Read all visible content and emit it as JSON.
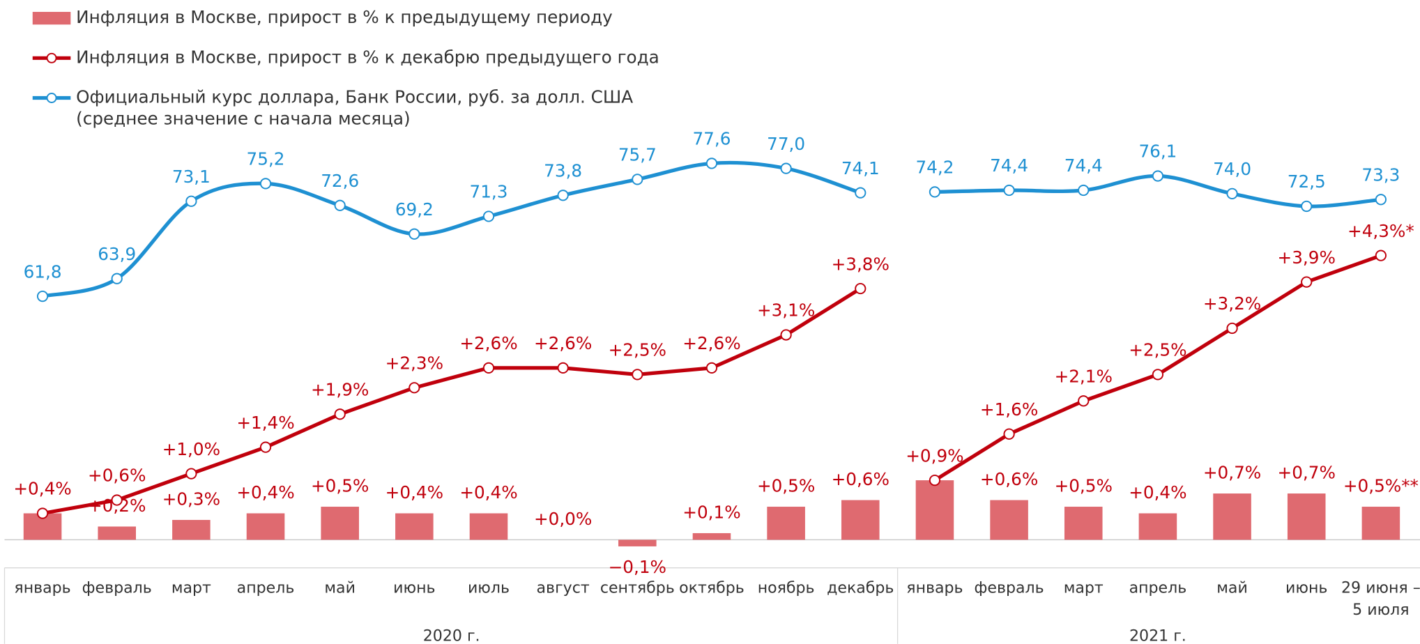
{
  "chart_data": {
    "type": "bar-line",
    "categories": [
      "январь",
      "февраль",
      "март",
      "апрель",
      "май",
      "июнь",
      "июль",
      "август",
      "сентябрь",
      "октябрь",
      "ноябрь",
      "декабрь",
      "январь",
      "февраль",
      "март",
      "апрель",
      "май",
      "июнь",
      "29 июня –\n5 июля"
    ],
    "groups": [
      {
        "label": "2020 г.",
        "categories": 12
      },
      {
        "label": "2021 г.",
        "categories": 7
      }
    ],
    "ylim": [
      -1,
      6
    ],
    "y2lim": [
      25,
      80
    ],
    "series": [
      {
        "name": "Инфляция в Москве, прирост в % к предыдущему периоду",
        "type": "bar",
        "color": "#df6a70",
        "values": [
          0.4,
          0.2,
          0.3,
          0.4,
          0.5,
          0.4,
          0.4,
          0.0,
          -0.1,
          0.1,
          0.5,
          0.6,
          0.9,
          0.6,
          0.5,
          0.4,
          0.7,
          0.7,
          0.5
        ],
        "value_labels": [
          null,
          "+0,2%",
          "+0,3%",
          "+0,4%",
          "+0,5%",
          "+0,4%",
          "+0,4%",
          "+0,0%",
          "−0,1%",
          "+0,1%",
          "+0,5%",
          "+0,6%",
          null,
          "+0,6%",
          "+0,5%",
          "+0,4%",
          "+0,7%",
          "+0,7%",
          "+0,5%**"
        ]
      },
      {
        "name": "Инфляция в Москве, прирост в % к декабрю предыдущего года",
        "type": "line",
        "color": "#c0000c",
        "values": [
          0.4,
          0.6,
          1.0,
          1.4,
          1.9,
          2.3,
          2.6,
          2.6,
          2.5,
          2.6,
          3.1,
          3.8,
          0.9,
          1.6,
          2.1,
          2.5,
          3.2,
          3.9,
          4.3
        ],
        "value_labels": [
          "+0,4%",
          "+0,6%",
          "+1,0%",
          "+1,4%",
          "+1,9%",
          "+2,3%",
          "+2,6%",
          "+2,6%",
          "+2,5%",
          "+2,6%",
          "+3,1%",
          "+3,8%",
          "+0,9%",
          "+1,6%",
          "+2,1%",
          "+2,5%",
          "+3,2%",
          "+3,9%",
          "+4,3%*"
        ]
      },
      {
        "name": "Официальный курс доллара, Банк России, руб. за долл. США\n(среднее значение с начала месяца)",
        "type": "line",
        "smooth": true,
        "axis": "y2",
        "color": "#1e90d2",
        "values": [
          61.8,
          63.9,
          73.1,
          75.2,
          72.6,
          69.2,
          71.3,
          73.8,
          75.7,
          77.6,
          77.0,
          74.1,
          74.2,
          74.4,
          74.4,
          76.1,
          74.0,
          72.5,
          73.3
        ],
        "value_labels": [
          "61,8",
          "63,9",
          "73,1",
          "75,2",
          "72,6",
          "69,2",
          "71,3",
          "73,8",
          "75,7",
          "77,6",
          "77,0",
          "74,1",
          "74,2",
          "74,4",
          "74,4",
          "76,1",
          "74,0",
          "72,5",
          "73,3"
        ]
      }
    ]
  }
}
